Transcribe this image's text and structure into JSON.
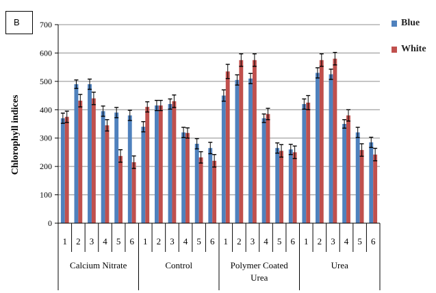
{
  "chart_data": {
    "type": "bar",
    "panel_label": "B",
    "ylabel": "Chlorophyll indices",
    "ylim": [
      0,
      700
    ],
    "yticks": [
      0,
      100,
      200,
      300,
      400,
      500,
      600,
      700
    ],
    "grid": true,
    "legend_position": "top-right",
    "groups": [
      {
        "label": "Calcium Nitrate",
        "categories": [
          "1",
          "2",
          "3",
          "4",
          "5",
          "6"
        ]
      },
      {
        "label": "Control",
        "categories": [
          "1",
          "2",
          "3",
          "4",
          "5",
          "6"
        ]
      },
      {
        "label": "Polymer Coated Urea",
        "categories": [
          "1",
          "2",
          "3",
          "4",
          "5",
          "6"
        ]
      },
      {
        "label": "Urea",
        "categories": [
          "1",
          "2",
          "3",
          "4",
          "5",
          "6"
        ]
      }
    ],
    "series": [
      {
        "name": "Blue",
        "color": "#4f81bd",
        "values": [
          370,
          490,
          490,
          395,
          390,
          380,
          340,
          415,
          420,
          320,
          280,
          265,
          450,
          505,
          510,
          370,
          265,
          260,
          420,
          530,
          525,
          350,
          320,
          285
        ],
        "errors": [
          18,
          15,
          18,
          18,
          18,
          18,
          18,
          18,
          18,
          18,
          18,
          20,
          20,
          18,
          18,
          15,
          18,
          18,
          18,
          18,
          18,
          15,
          18,
          18
        ]
      },
      {
        "name": "White",
        "color": "#c0504d",
        "values": [
          375,
          432,
          440,
          345,
          237,
          215,
          410,
          415,
          430,
          318,
          232,
          220,
          535,
          575,
          575,
          385,
          255,
          250,
          425,
          575,
          580,
          380,
          258,
          242
        ],
        "errors": [
          20,
          22,
          22,
          20,
          22,
          22,
          18,
          18,
          22,
          18,
          20,
          22,
          25,
          22,
          22,
          20,
          22,
          22,
          25,
          22,
          22,
          20,
          22,
          22
        ]
      }
    ]
  }
}
